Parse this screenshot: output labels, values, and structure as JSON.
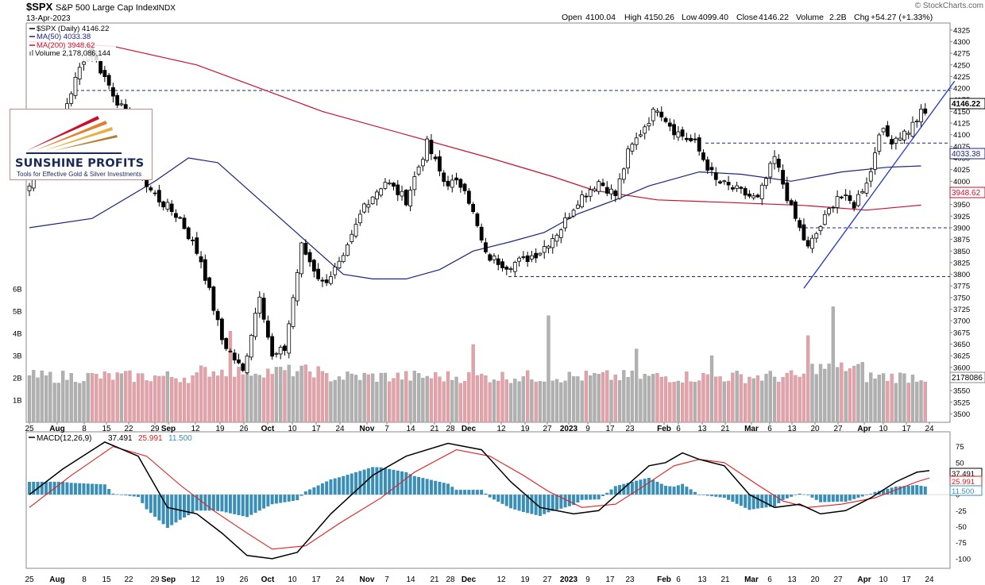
{
  "header": {
    "symbol": "$SPX",
    "name": "S&P 500 Large Cap Index",
    "exchange": "INDX",
    "date": "13-Apr-2023",
    "open_label": "Open",
    "open": "4100.04",
    "high_label": "High",
    "high": "4150.26",
    "low_label": "Low",
    "low": "4099.40",
    "close_label": "Close",
    "close": "4146.22",
    "volume_label": "Volume",
    "volume": "2.2B",
    "chg_label": "Chg",
    "chg": "+54.27 (+1.33%)",
    "watermark": "© StockCharts.com"
  },
  "legend": {
    "price": "$SPX (Daily) 4146.22",
    "ma50": "MA(50) 4033.38",
    "ma200": "MA(200) 3948.62",
    "volume": "Volume 2,178,086,144"
  },
  "badges": {
    "close": "4146.22",
    "ma50": "4033.38",
    "ma200": "3948.62",
    "volume": "2178086"
  },
  "macd_legend": {
    "label": "MACD(12,26,9)",
    "macd": "37.491",
    "signal": "25.991",
    "hist": "11.500"
  },
  "macd_badges": {
    "macd": "37.491",
    "signal": "25.991",
    "hist": "11.500"
  },
  "logo": {
    "title": "SUNSHINE PROFITS",
    "tagline": "Tools for Effective Gold & Silver Investments"
  },
  "colors": {
    "ma50": "#1a237e",
    "ma200": "#c8102e",
    "vol_up": "#b0b0b0",
    "vol_down": "#e8a0a8",
    "macd": "#000000",
    "signal": "#e02020",
    "hist": "#3a8fb7",
    "trend": "#2233cc"
  },
  "chart_data": [
    {
      "type": "candlestick",
      "title": "$SPX S&P 500 Large Cap Index",
      "x_ticks": [
        "25",
        "Aug",
        "8",
        "15",
        "22",
        "29",
        "Sep",
        "12",
        "19",
        "26",
        "Oct",
        "10",
        "17",
        "24",
        "Nov",
        "7",
        "14",
        "21",
        "28",
        "Dec",
        "12",
        "19",
        "27",
        "2023",
        "9",
        "17",
        "23",
        "Feb",
        "6",
        "13",
        "21",
        "Mar",
        "6",
        "13",
        "20",
        "27",
        "Apr",
        "10",
        "17",
        "24"
      ],
      "y_ticks": [
        3500,
        3525,
        3550,
        3575,
        3600,
        3625,
        3650,
        3675,
        3700,
        3725,
        3750,
        3775,
        3800,
        3825,
        3850,
        3875,
        3900,
        3925,
        3950,
        3975,
        4000,
        4025,
        4050,
        4075,
        4100,
        4125,
        4150,
        4175,
        4200,
        4225,
        4250,
        4275,
        4300,
        4325
      ],
      "ylim": [
        3482,
        4340
      ],
      "anchors_close": [
        [
          0,
          3990
        ],
        [
          7,
          4120
        ],
        [
          14,
          4290
        ],
        [
          17,
          4240
        ],
        [
          23,
          4140
        ],
        [
          28,
          3990
        ],
        [
          31,
          3960
        ],
        [
          36,
          3920
        ],
        [
          41,
          3830
        ],
        [
          46,
          3660
        ],
        [
          51,
          3590
        ],
        [
          55,
          3760
        ],
        [
          58,
          3620
        ],
        [
          61,
          3640
        ],
        [
          65,
          3860
        ],
        [
          70,
          3780
        ],
        [
          75,
          3830
        ],
        [
          80,
          3950
        ],
        [
          85,
          4000
        ],
        [
          90,
          3960
        ],
        [
          95,
          4080
        ],
        [
          99,
          4000
        ],
        [
          104,
          3990
        ],
        [
          109,
          3840
        ],
        [
          114,
          3820
        ],
        [
          118,
          3830
        ],
        [
          122,
          3850
        ],
        [
          127,
          3900
        ],
        [
          131,
          3960
        ],
        [
          136,
          4000
        ],
        [
          140,
          3970
        ],
        [
          143,
          4060
        ],
        [
          147,
          4120
        ],
        [
          150,
          4160
        ],
        [
          154,
          4110
        ],
        [
          159,
          4080
        ],
        [
          164,
          4000
        ],
        [
          169,
          3980
        ],
        [
          174,
          3960
        ],
        [
          178,
          4050
        ],
        [
          182,
          3940
        ],
        [
          186,
          3855
        ],
        [
          190,
          3920
        ],
        [
          193,
          3970
        ],
        [
          197,
          3950
        ],
        [
          201,
          4020
        ],
        [
          203,
          4110
        ],
        [
          206,
          4090
        ],
        [
          210,
          4109
        ],
        [
          213,
          4146
        ]
      ],
      "levels": [
        {
          "name": "resistance",
          "value": 4195
        },
        {
          "name": "neckline",
          "value": 4082
        },
        {
          "name": "support_mid",
          "value": 3900
        },
        {
          "name": "support_low",
          "value": 3795
        }
      ],
      "trendline": {
        "from": [
          185,
          3770
        ],
        "to": [
          221,
          4215
        ]
      },
      "ma50_points": [
        [
          0,
          3900
        ],
        [
          15,
          3920
        ],
        [
          30,
          4000
        ],
        [
          38,
          4050
        ],
        [
          45,
          4040
        ],
        [
          55,
          3960
        ],
        [
          65,
          3880
        ],
        [
          75,
          3800
        ],
        [
          82,
          3790
        ],
        [
          90,
          3790
        ],
        [
          98,
          3810
        ],
        [
          106,
          3850
        ],
        [
          115,
          3870
        ],
        [
          123,
          3890
        ],
        [
          131,
          3930
        ],
        [
          140,
          3960
        ],
        [
          148,
          3990
        ],
        [
          160,
          4020
        ],
        [
          170,
          4015
        ],
        [
          182,
          4000
        ],
        [
          194,
          4020
        ],
        [
          205,
          4030
        ],
        [
          213,
          4033
        ]
      ],
      "ma200_points": [
        [
          0,
          4300
        ],
        [
          20,
          4290
        ],
        [
          40,
          4250
        ],
        [
          55,
          4200
        ],
        [
          70,
          4150
        ],
        [
          90,
          4100
        ],
        [
          110,
          4050
        ],
        [
          125,
          4010
        ],
        [
          135,
          3980
        ],
        [
          150,
          3960
        ],
        [
          165,
          3955
        ],
        [
          185,
          3948
        ],
        [
          200,
          3938
        ],
        [
          213,
          3948.62
        ]
      ],
      "volume_axis": [
        "1B",
        "2B",
        "3B",
        "4B",
        "5B",
        "6B"
      ],
      "volume_spikes": [
        [
          48,
          4.1
        ],
        [
          106,
          3.5
        ],
        [
          124,
          4.8
        ],
        [
          145,
          3.3
        ],
        [
          163,
          3.0
        ],
        [
          186,
          3.9
        ],
        [
          192,
          5.2
        ]
      ]
    },
    {
      "type": "line",
      "title": "MACD(12,26,9)",
      "y_ticks": [
        -100,
        -75,
        -50,
        -25,
        0,
        25,
        50,
        75
      ],
      "ylim": [
        -115,
        98
      ],
      "series": [
        {
          "name": "MACD",
          "points": [
            [
              0,
              0
            ],
            [
              8,
              40
            ],
            [
              18,
              82
            ],
            [
              26,
              60
            ],
            [
              33,
              -20
            ],
            [
              40,
              -30
            ],
            [
              46,
              -60
            ],
            [
              52,
              -95
            ],
            [
              58,
              -100
            ],
            [
              64,
              -90
            ],
            [
              72,
              -30
            ],
            [
              82,
              30
            ],
            [
              90,
              60
            ],
            [
              100,
              80
            ],
            [
              108,
              70
            ],
            [
              115,
              20
            ],
            [
              122,
              -20
            ],
            [
              130,
              -30
            ],
            [
              136,
              -25
            ],
            [
              142,
              10
            ],
            [
              148,
              45
            ],
            [
              152,
              50
            ],
            [
              156,
              65
            ],
            [
              160,
              55
            ],
            [
              166,
              45
            ],
            [
              172,
              0
            ],
            [
              178,
              -20
            ],
            [
              184,
              -15
            ],
            [
              189,
              -30
            ],
            [
              195,
              -25
            ],
            [
              201,
              -5
            ],
            [
              207,
              20
            ],
            [
              212,
              35
            ],
            [
              215,
              37.491
            ]
          ]
        },
        {
          "name": "Signal",
          "points": [
            [
              0,
              -20
            ],
            [
              10,
              30
            ],
            [
              20,
              75
            ],
            [
              28,
              60
            ],
            [
              36,
              15
            ],
            [
              44,
              -25
            ],
            [
              52,
              -60
            ],
            [
              58,
              -85
            ],
            [
              66,
              -80
            ],
            [
              74,
              -45
            ],
            [
              84,
              -5
            ],
            [
              92,
              35
            ],
            [
              102,
              70
            ],
            [
              110,
              60
            ],
            [
              118,
              30
            ],
            [
              124,
              5
            ],
            [
              132,
              -20
            ],
            [
              140,
              -15
            ],
            [
              146,
              10
            ],
            [
              154,
              45
            ],
            [
              160,
              55
            ],
            [
              166,
              50
            ],
            [
              174,
              15
            ],
            [
              180,
              -10
            ],
            [
              186,
              -20
            ],
            [
              194,
              -15
            ],
            [
              202,
              -5
            ],
            [
              208,
              10
            ],
            [
              212,
              20
            ],
            [
              215,
              25.991
            ]
          ]
        }
      ]
    }
  ]
}
